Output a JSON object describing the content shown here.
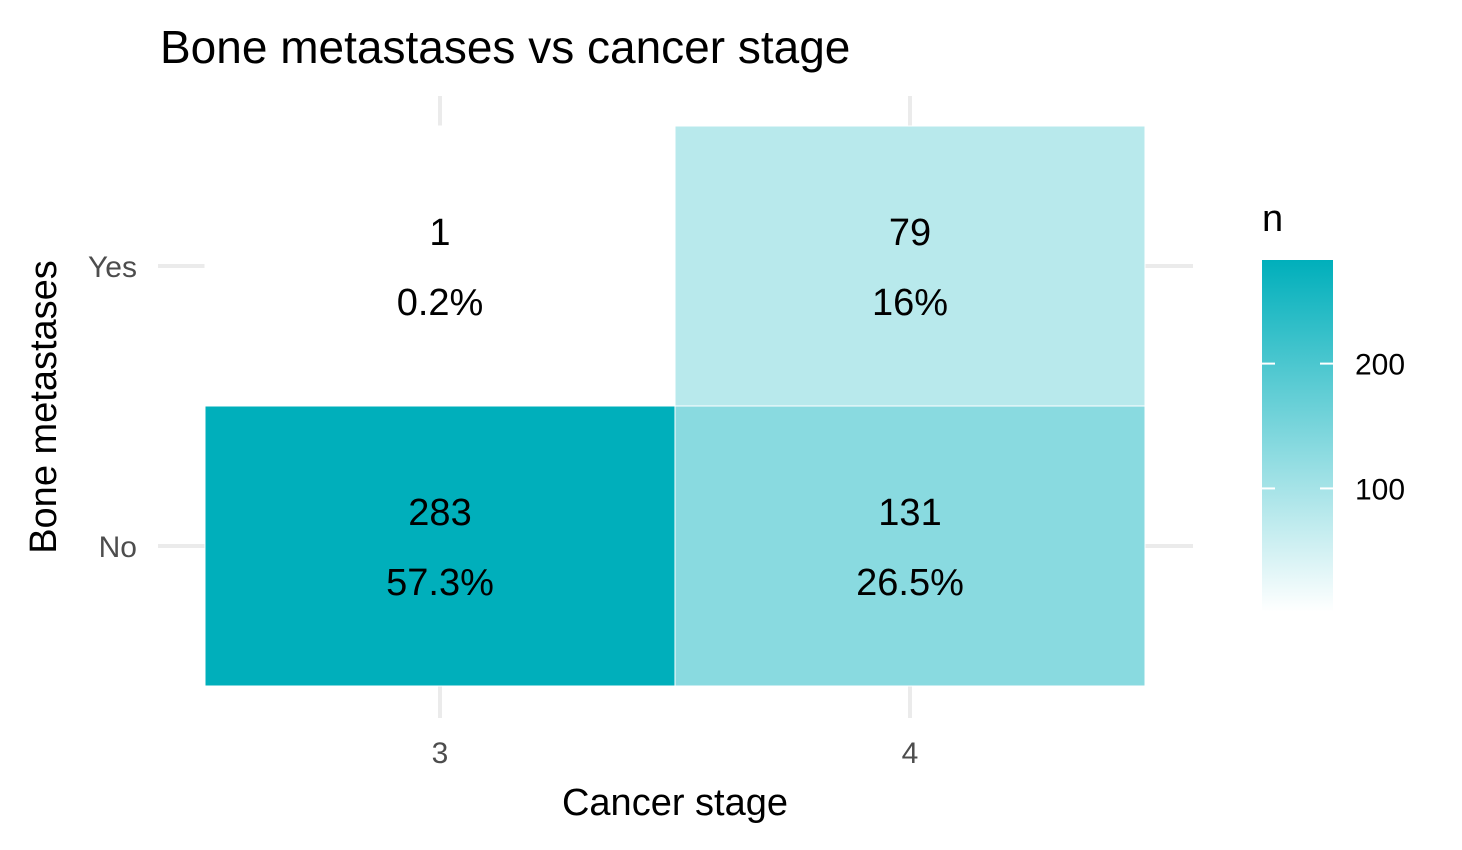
{
  "chart_data": {
    "type": "heatmap",
    "title": "Bone metastases vs cancer stage",
    "xlabel": "Cancer stage",
    "ylabel": "Bone metastases",
    "x_categories": [
      "3",
      "4"
    ],
    "y_categories": [
      "No",
      "Yes"
    ],
    "cells": [
      {
        "x": "3",
        "y": "Yes",
        "n": 1,
        "pct": "0.2%"
      },
      {
        "x": "4",
        "y": "Yes",
        "n": 79,
        "pct": "16%"
      },
      {
        "x": "3",
        "y": "No",
        "n": 283,
        "pct": "57.3%"
      },
      {
        "x": "4",
        "y": "No",
        "n": 131,
        "pct": "26.5%"
      }
    ],
    "legend": {
      "title": "n",
      "ticks": [
        100,
        200
      ],
      "tick_labels": [
        "100",
        "200"
      ],
      "range": [
        1,
        283
      ],
      "low_color": "#ffffff",
      "high_color": "#00afbb"
    },
    "grid": true,
    "legend_position": "right"
  }
}
